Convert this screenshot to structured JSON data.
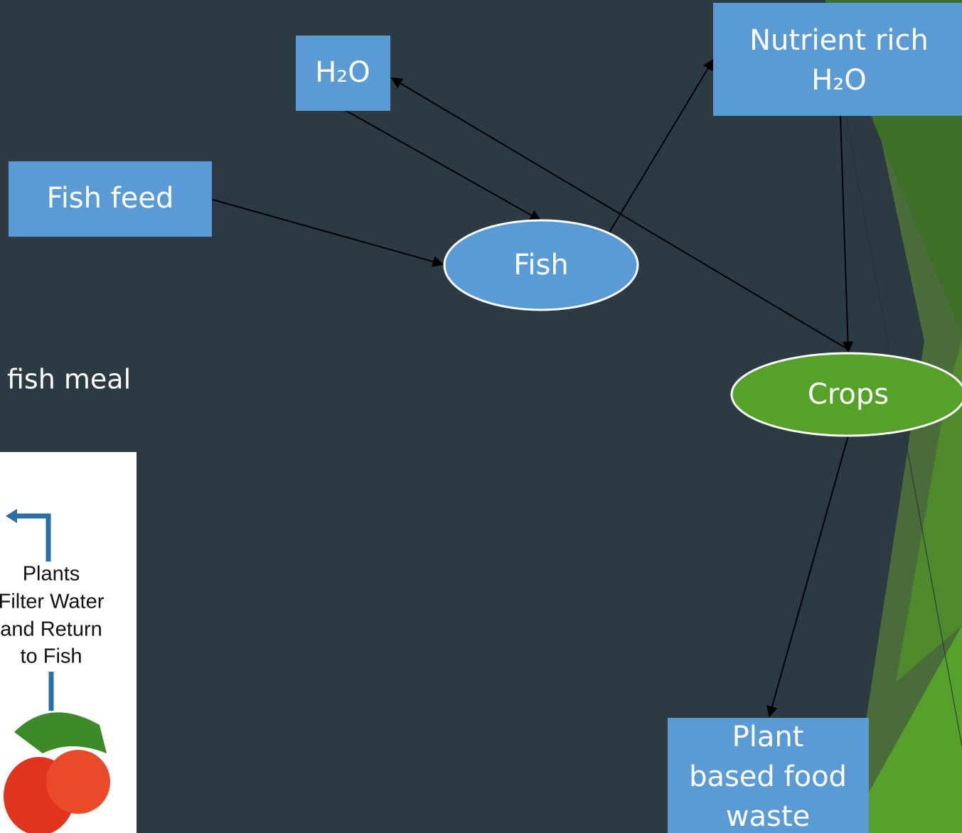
{
  "nodes": [
    {
      "label": "H₂O"
    },
    {
      "label": "Nutrient rich"
    },
    {
      "label": "H₂O"
    },
    {
      "label": "Fish feed"
    },
    {
      "label": "Fish"
    },
    {
      "label": "Crops"
    },
    {
      "label": "Plant"
    },
    {
      "label": "based food"
    },
    {
      "label": "waste"
    }
  ],
  "side_text": "fish meal",
  "image_caption": [
    "Plants",
    "Filter Water",
    "and Return",
    "to Fish"
  ]
}
